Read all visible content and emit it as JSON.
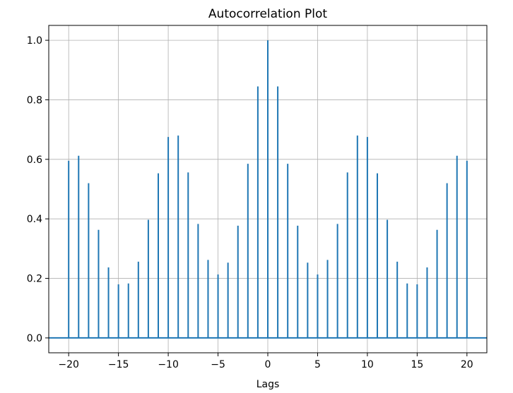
{
  "chart_data": {
    "type": "stem",
    "title": "Autocorrelation Plot",
    "xlabel": "Lags",
    "ylabel": "",
    "xlim": [
      -22,
      22
    ],
    "ylim": [
      -0.05,
      1.05
    ],
    "xticks": [
      -20,
      -15,
      -10,
      -5,
      0,
      5,
      10,
      15,
      20
    ],
    "xtick_labels": [
      "−20",
      "−15",
      "−10",
      "−5",
      "0",
      "5",
      "10",
      "15",
      "20"
    ],
    "yticks": [
      0.0,
      0.2,
      0.4,
      0.6,
      0.8,
      1.0
    ],
    "ytick_labels": [
      "0.0",
      "0.2",
      "0.4",
      "0.6",
      "0.8",
      "1.0"
    ],
    "grid": true,
    "baseline": 0,
    "color": "#1f77b4",
    "x": [
      -20,
      -19,
      -18,
      -17,
      -16,
      -15,
      -14,
      -13,
      -12,
      -11,
      -10,
      -9,
      -8,
      -7,
      -6,
      -5,
      -4,
      -3,
      -2,
      -1,
      0,
      1,
      2,
      3,
      4,
      5,
      6,
      7,
      8,
      9,
      10,
      11,
      12,
      13,
      14,
      15,
      16,
      17,
      18,
      19,
      20
    ],
    "y": [
      0.595,
      0.612,
      0.52,
      0.363,
      0.237,
      0.18,
      0.183,
      0.256,
      0.397,
      0.553,
      0.675,
      0.68,
      0.556,
      0.383,
      0.262,
      0.213,
      0.253,
      0.377,
      0.585,
      0.845,
      1.0,
      0.845,
      0.585,
      0.377,
      0.253,
      0.213,
      0.262,
      0.383,
      0.556,
      0.68,
      0.675,
      0.553,
      0.397,
      0.256,
      0.183,
      0.18,
      0.237,
      0.363,
      0.52,
      0.612,
      0.595
    ]
  }
}
